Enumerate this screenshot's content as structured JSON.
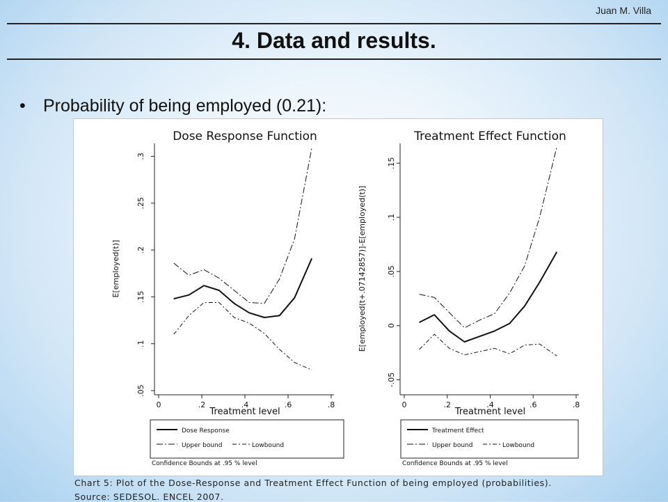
{
  "header": {
    "author": "Juan M. Villa",
    "title": "4. Data and results."
  },
  "bullet": {
    "symbol": "•",
    "text": "Probability of being employed (0.21):"
  },
  "figure": {
    "caption": "Chart 5: Plot of the Dose-Response and Treatment Effect Function of being employed (probabilities).",
    "source": "Source: SEDESOL. ENCEL 2007."
  },
  "chart_data": [
    {
      "type": "line",
      "title": "Dose Response Function",
      "xlabel": "Treatment level",
      "ylabel": "E[employed(t)]",
      "xlim": [
        0,
        0.8
      ],
      "ylim": [
        0.05,
        0.31
      ],
      "xticks": [
        "0",
        ".2",
        ".4",
        ".6",
        ".8"
      ],
      "xtick_values": [
        0,
        0.2,
        0.4,
        0.6,
        0.8
      ],
      "yticks": [
        ".05",
        ".1",
        ".15",
        ".2",
        ".25",
        ".3"
      ],
      "ytick_values": [
        0.05,
        0.1,
        0.15,
        0.2,
        0.25,
        0.3
      ],
      "x": [
        0.07,
        0.14,
        0.21,
        0.28,
        0.35,
        0.42,
        0.49,
        0.56,
        0.63,
        0.71
      ],
      "series": [
        {
          "name": "Dose Response",
          "style": "solid",
          "values": [
            0.148,
            0.152,
            0.162,
            0.157,
            0.143,
            0.133,
            0.128,
            0.13,
            0.149,
            0.191
          ]
        },
        {
          "name": "Upper bound",
          "style": "dashdot",
          "values": [
            0.186,
            0.173,
            0.179,
            0.17,
            0.157,
            0.144,
            0.143,
            0.169,
            0.212,
            0.309
          ]
        },
        {
          "name": "Lowbound",
          "style": "dashdotshort",
          "values": [
            0.11,
            0.13,
            0.144,
            0.144,
            0.128,
            0.122,
            0.111,
            0.094,
            0.08,
            0.072
          ]
        }
      ],
      "legend": {
        "note": "Confidence Bounds at .95 % level"
      }
    },
    {
      "type": "line",
      "title": "Treatment Effect Function",
      "xlabel": "Treatment level",
      "ylabel": "E[employed(t+.07142857)]-E[employed(t)]",
      "xlim": [
        0,
        0.8
      ],
      "ylim": [
        -0.06,
        0.165
      ],
      "xticks": [
        "0",
        ".2",
        ".4",
        ".6",
        ".8"
      ],
      "xtick_values": [
        0,
        0.2,
        0.4,
        0.6,
        0.8
      ],
      "yticks": [
        "-.05",
        "0",
        ".05",
        ".1",
        ".15"
      ],
      "ytick_values": [
        -0.05,
        0,
        0.05,
        0.1,
        0.15
      ],
      "x": [
        0.07,
        0.14,
        0.21,
        0.28,
        0.35,
        0.42,
        0.49,
        0.56,
        0.63,
        0.71
      ],
      "series": [
        {
          "name": "Treatment Effect",
          "style": "solid",
          "values": [
            0.003,
            0.01,
            -0.005,
            -0.015,
            -0.01,
            -0.005,
            0.002,
            0.018,
            0.04,
            0.068
          ]
        },
        {
          "name": "Upper bound",
          "style": "dashdot",
          "values": [
            0.029,
            0.026,
            0.012,
            -0.002,
            0.005,
            0.011,
            0.03,
            0.055,
            0.1,
            0.165
          ]
        },
        {
          "name": "Lowbound",
          "style": "dashdotshort",
          "values": [
            -0.022,
            -0.008,
            -0.021,
            -0.027,
            -0.024,
            -0.021,
            -0.026,
            -0.018,
            -0.017,
            -0.028
          ]
        }
      ],
      "legend": {
        "note": "Confidence Bounds at .95 % level"
      }
    }
  ]
}
